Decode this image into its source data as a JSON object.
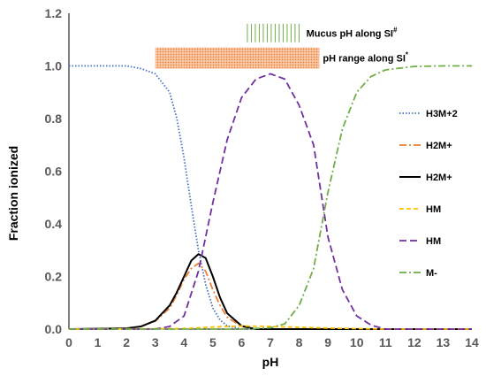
{
  "chart_data": {
    "type": "line",
    "xlabel": "pH",
    "ylabel": "Fraction ionized",
    "xlim": [
      0,
      14
    ],
    "ylim": [
      0,
      1.2
    ],
    "x_ticks": [
      "0",
      "1",
      "2",
      "3",
      "4",
      "5",
      "6",
      "7",
      "8",
      "9",
      "10",
      "11",
      "12",
      "13",
      "14"
    ],
    "y_ticks": [
      "0.0",
      "0.2",
      "0.4",
      "0.6",
      "0.8",
      "1.0",
      "1.2"
    ],
    "grid": false,
    "legend_position": "right",
    "series": [
      {
        "name": "H3M+2",
        "color": "#4472C4",
        "dash": "dotted",
        "points": [
          [
            0,
            1.0
          ],
          [
            2,
            1.0
          ],
          [
            2.5,
            0.99
          ],
          [
            3,
            0.97
          ],
          [
            3.5,
            0.9
          ],
          [
            3.75,
            0.8
          ],
          [
            4,
            0.65
          ],
          [
            4.25,
            0.47
          ],
          [
            4.5,
            0.3
          ],
          [
            4.75,
            0.17
          ],
          [
            5,
            0.08
          ],
          [
            5.25,
            0.035
          ],
          [
            5.5,
            0.012
          ],
          [
            6,
            0.0
          ],
          [
            14,
            0.0
          ]
        ]
      },
      {
        "name": "H2M+",
        "color": "#ED7D31",
        "dash": "dashdot",
        "points": [
          [
            0,
            0.0
          ],
          [
            2,
            0.003
          ],
          [
            2.5,
            0.01
          ],
          [
            3,
            0.03
          ],
          [
            3.5,
            0.08
          ],
          [
            3.75,
            0.13
          ],
          [
            4,
            0.19
          ],
          [
            4.25,
            0.23
          ],
          [
            4.5,
            0.25
          ],
          [
            4.75,
            0.22
          ],
          [
            5,
            0.15
          ],
          [
            5.25,
            0.09
          ],
          [
            5.5,
            0.045
          ],
          [
            6,
            0.01
          ],
          [
            6.5,
            0.0
          ],
          [
            14,
            0.0
          ]
        ]
      },
      {
        "name": "H2M+",
        "color": "#000000",
        "dash": "solid",
        "points": [
          [
            0,
            0.0
          ],
          [
            2,
            0.003
          ],
          [
            2.5,
            0.01
          ],
          [
            3,
            0.032
          ],
          [
            3.5,
            0.09
          ],
          [
            3.75,
            0.14
          ],
          [
            4,
            0.2
          ],
          [
            4.25,
            0.26
          ],
          [
            4.5,
            0.285
          ],
          [
            4.75,
            0.27
          ],
          [
            5,
            0.2
          ],
          [
            5.25,
            0.12
          ],
          [
            5.5,
            0.06
          ],
          [
            6,
            0.012
          ],
          [
            6.5,
            0.0
          ],
          [
            14,
            0.0
          ]
        ]
      },
      {
        "name": "HM",
        "color": "#FFC000",
        "dash": "dashed",
        "points": [
          [
            0,
            0.0
          ],
          [
            4,
            0.002
          ],
          [
            5,
            0.008
          ],
          [
            6,
            0.012
          ],
          [
            7,
            0.01
          ],
          [
            8,
            0.007
          ],
          [
            9,
            0.004
          ],
          [
            10,
            0.002
          ],
          [
            11,
            0.0
          ],
          [
            14,
            0.0
          ]
        ]
      },
      {
        "name": "HM",
        "color": "#7030A0",
        "dash": "longdash",
        "points": [
          [
            0,
            0.0
          ],
          [
            3,
            0.0
          ],
          [
            3.5,
            0.01
          ],
          [
            4,
            0.05
          ],
          [
            4.5,
            0.22
          ],
          [
            5,
            0.48
          ],
          [
            5.5,
            0.72
          ],
          [
            6,
            0.88
          ],
          [
            6.5,
            0.95
          ],
          [
            7,
            0.97
          ],
          [
            7.5,
            0.95
          ],
          [
            8,
            0.85
          ],
          [
            8.5,
            0.7
          ],
          [
            9,
            0.35
          ],
          [
            9.5,
            0.15
          ],
          [
            10,
            0.05
          ],
          [
            10.5,
            0.015
          ],
          [
            11,
            0.0
          ],
          [
            14,
            0.0
          ]
        ]
      },
      {
        "name": "M-",
        "color": "#70AD47",
        "dash": "dashdot",
        "points": [
          [
            0,
            0.0
          ],
          [
            6,
            0.0
          ],
          [
            7,
            0.005
          ],
          [
            7.5,
            0.02
          ],
          [
            8,
            0.09
          ],
          [
            8.5,
            0.23
          ],
          [
            9,
            0.52
          ],
          [
            9.5,
            0.76
          ],
          [
            10,
            0.9
          ],
          [
            10.5,
            0.96
          ],
          [
            11,
            0.985
          ],
          [
            12,
            0.998
          ],
          [
            13,
            1.0
          ],
          [
            14,
            1.0
          ]
        ]
      }
    ],
    "bands": [
      {
        "label": "Mucus pH along SI",
        "marker": "#",
        "x_range": [
          6.2,
          8.0
        ],
        "y_range": [
          1.09,
          1.16
        ],
        "color": "#70AD47",
        "pattern": "vertical-lines"
      },
      {
        "label": "pH range along SI",
        "marker": "*",
        "x_range": [
          3.0,
          8.7
        ],
        "y_range": [
          0.99,
          1.07
        ],
        "color": "#F4B183",
        "pattern": "dots"
      }
    ]
  }
}
